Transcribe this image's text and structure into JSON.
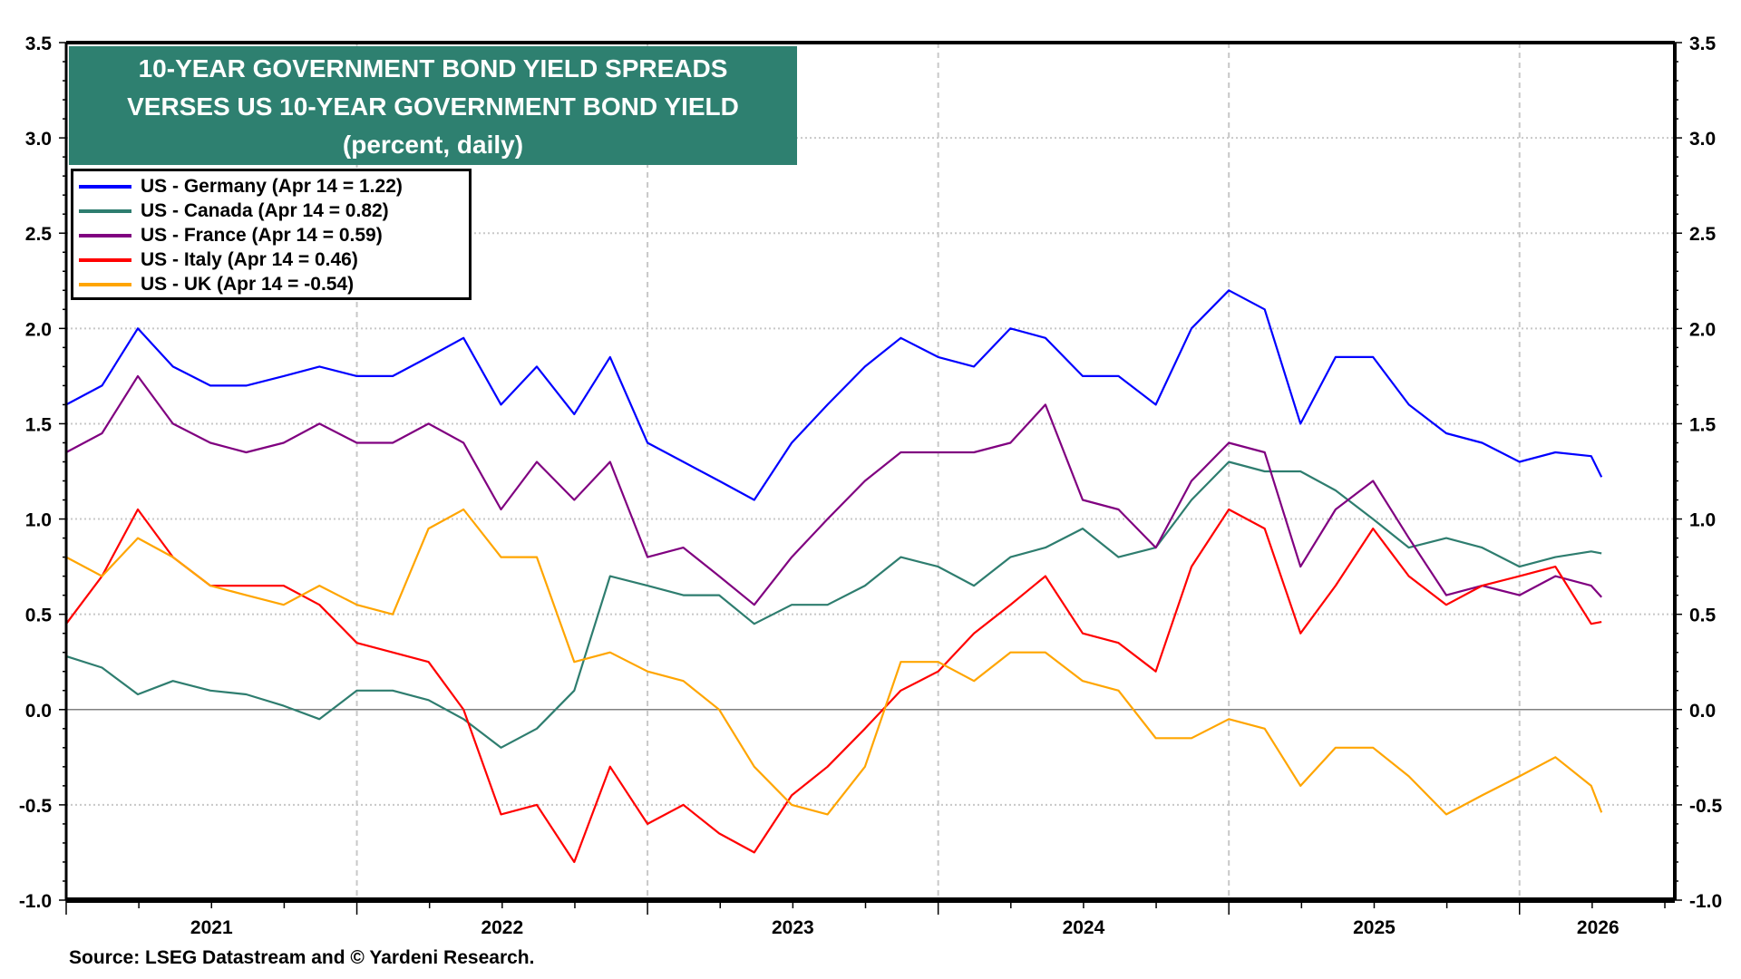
{
  "chart_data": {
    "type": "line",
    "title": "10-YEAR GOVERNMENT BOND YIELD SPREADS",
    "subtitle_lines": [
      "VERSES US 10-YEAR GOVERNMENT BOND YIELD",
      "(percent, daily)"
    ],
    "xlabel": "",
    "ylabel": "",
    "ylim": [
      -1.0,
      3.5
    ],
    "xlim": [
      "2021-01-01",
      "2026-07-15"
    ],
    "y_ticks": [
      "3.5",
      "3.0",
      "2.5",
      "2.0",
      "1.5",
      "1.0",
      "0.5",
      "0.0",
      "-0.5",
      "-1.0"
    ],
    "x_tick_labels": [
      "2021",
      "2022",
      "2023",
      "2024",
      "2025",
      "2026"
    ],
    "grid": true,
    "legend_position": "top-left",
    "dates": [
      "2021-01-01",
      "2021-02-15",
      "2021-04-01",
      "2021-05-15",
      "2021-07-01",
      "2021-08-15",
      "2021-10-01",
      "2021-11-15",
      "2022-01-01",
      "2022-02-15",
      "2022-04-01",
      "2022-05-15",
      "2022-07-01",
      "2022-08-15",
      "2022-10-01",
      "2022-11-15",
      "2023-01-01",
      "2023-02-15",
      "2023-04-01",
      "2023-05-15",
      "2023-07-01",
      "2023-08-15",
      "2023-10-01",
      "2023-11-15",
      "2024-01-01",
      "2024-02-15",
      "2024-04-01",
      "2024-05-15",
      "2024-07-01",
      "2024-08-15",
      "2024-10-01",
      "2024-11-15",
      "2025-01-01",
      "2025-02-15",
      "2025-04-01",
      "2025-05-15",
      "2025-07-01",
      "2025-08-15",
      "2025-10-01",
      "2025-11-15",
      "2026-01-01",
      "2026-02-15",
      "2026-04-01",
      "2026-04-14"
    ],
    "series": [
      {
        "name": "US - Germany (Apr 14 = 1.22)",
        "color": "#0000ff",
        "values": [
          1.6,
          1.7,
          2.0,
          1.8,
          1.7,
          1.7,
          1.75,
          1.8,
          1.75,
          1.75,
          1.85,
          1.95,
          1.6,
          1.8,
          1.55,
          1.85,
          1.4,
          1.3,
          1.2,
          1.1,
          1.4,
          1.6,
          1.8,
          1.95,
          1.85,
          1.8,
          2.0,
          1.95,
          1.75,
          1.75,
          1.6,
          2.0,
          2.2,
          2.1,
          1.5,
          1.85,
          1.85,
          1.6,
          1.45,
          1.4,
          1.3,
          1.35,
          1.33,
          1.22
        ]
      },
      {
        "name": "US - Canada (Apr 14 = 0.82)",
        "color": "#2e7d6f",
        "values": [
          0.28,
          0.22,
          0.08,
          0.15,
          0.1,
          0.08,
          0.02,
          -0.05,
          0.1,
          0.1,
          0.05,
          -0.05,
          -0.2,
          -0.1,
          0.1,
          0.7,
          0.65,
          0.6,
          0.6,
          0.45,
          0.55,
          0.55,
          0.65,
          0.8,
          0.75,
          0.65,
          0.8,
          0.85,
          0.95,
          0.8,
          0.85,
          1.1,
          1.3,
          1.25,
          1.25,
          1.15,
          1.0,
          0.85,
          0.9,
          0.85,
          0.75,
          0.8,
          0.83,
          0.82
        ]
      },
      {
        "name": "US - France (Apr 14 = 0.59)",
        "color": "#800080",
        "values": [
          1.35,
          1.45,
          1.75,
          1.5,
          1.4,
          1.35,
          1.4,
          1.5,
          1.4,
          1.4,
          1.5,
          1.4,
          1.05,
          1.3,
          1.1,
          1.3,
          0.8,
          0.85,
          0.7,
          0.55,
          0.8,
          1.0,
          1.2,
          1.35,
          1.35,
          1.35,
          1.4,
          1.6,
          1.1,
          1.05,
          0.85,
          1.2,
          1.4,
          1.35,
          0.75,
          1.05,
          1.2,
          0.9,
          0.6,
          0.65,
          0.6,
          0.7,
          0.65,
          0.59
        ]
      },
      {
        "name": "US - Italy (Apr 14 = 0.46)",
        "color": "#ff0000",
        "values": [
          0.45,
          0.7,
          1.05,
          0.8,
          0.65,
          0.65,
          0.65,
          0.55,
          0.35,
          0.3,
          0.25,
          0.0,
          -0.55,
          -0.5,
          -0.8,
          -0.3,
          -0.6,
          -0.5,
          -0.65,
          -0.75,
          -0.45,
          -0.3,
          -0.1,
          0.1,
          0.2,
          0.4,
          0.55,
          0.7,
          0.4,
          0.35,
          0.2,
          0.75,
          1.05,
          0.95,
          0.4,
          0.65,
          0.95,
          0.7,
          0.55,
          0.65,
          0.7,
          0.75,
          0.45,
          0.46
        ]
      },
      {
        "name": "US - UK (Apr 14 = -0.54)",
        "color": "#ffa500",
        "values": [
          0.8,
          0.7,
          0.9,
          0.8,
          0.65,
          0.6,
          0.55,
          0.65,
          0.55,
          0.5,
          0.95,
          1.05,
          0.8,
          0.8,
          0.25,
          0.3,
          0.2,
          0.15,
          0.0,
          -0.3,
          -0.5,
          -0.55,
          -0.3,
          0.25,
          0.25,
          0.15,
          0.3,
          0.3,
          0.15,
          0.1,
          -0.15,
          -0.15,
          -0.05,
          -0.1,
          -0.4,
          -0.2,
          -0.2,
          -0.35,
          -0.55,
          -0.45,
          -0.35,
          -0.25,
          -0.4,
          -0.54
        ]
      }
    ],
    "source": "Source: LSEG Datastream and © Yardeni Research."
  },
  "colors": {
    "title_box": "#2e8070",
    "zero_line": "#808080",
    "grid": "#c8c8c8"
  }
}
